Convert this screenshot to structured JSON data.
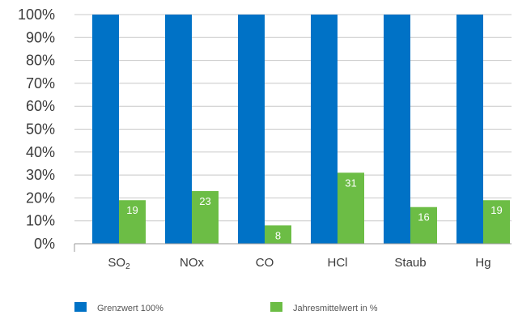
{
  "chart_data": {
    "type": "bar",
    "categories": [
      "SO",
      "NOx",
      "CO",
      "HCl",
      "Staub",
      "Hg"
    ],
    "category_subscripts": [
      "2",
      "",
      "",
      "",
      "",
      ""
    ],
    "series": [
      {
        "name": "Grenzwert 100%",
        "values": [
          100,
          100,
          100,
          100,
          100,
          100
        ],
        "color": "#0072c6"
      },
      {
        "name": "Jahresmittelwert in %",
        "values": [
          19,
          23,
          8,
          31,
          16,
          19
        ],
        "color": "#6cbd45",
        "data_labels": true
      }
    ],
    "ylim": [
      0,
      100
    ],
    "yticks": [
      0,
      10,
      20,
      30,
      40,
      50,
      60,
      70,
      80,
      90,
      100
    ],
    "ytick_labels": [
      "0%",
      "10%",
      "20%",
      "30%",
      "40%",
      "50%",
      "60%",
      "70%",
      "80%",
      "90%",
      "100%"
    ],
    "grid": true,
    "legend_position": "bottom"
  }
}
